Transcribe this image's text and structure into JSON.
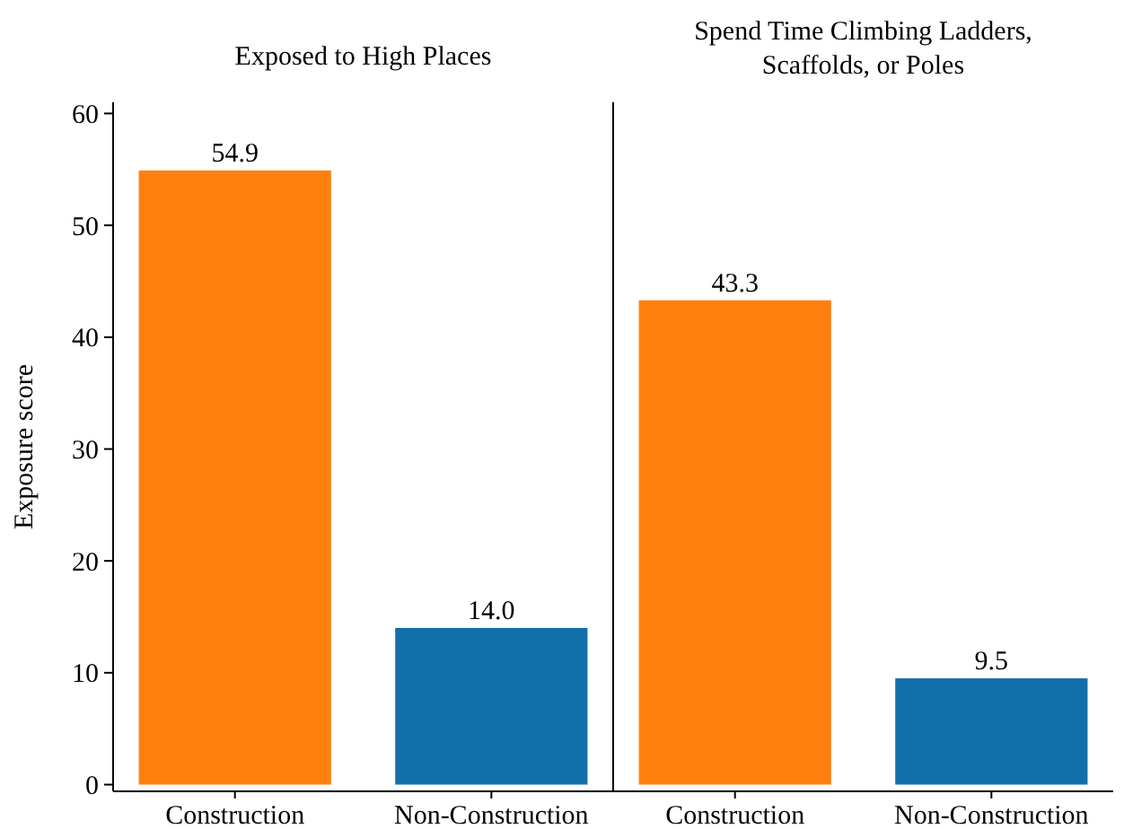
{
  "chart_data": [
    {
      "type": "bar",
      "title": "Exposed to High Places",
      "ylabel": "Exposure score",
      "categories": [
        "Construction",
        "Non-Construction"
      ],
      "values": [
        54.9,
        14.0
      ],
      "value_labels": [
        "54.9",
        "14.0"
      ],
      "colors": [
        "#ff7f0e",
        "#1170aa"
      ],
      "ylim": [
        -0.6,
        61
      ],
      "yticks": [
        0,
        10,
        20,
        30,
        40,
        50,
        60
      ]
    },
    {
      "type": "bar",
      "title": "Spend Time Climbing Ladders, Scaffolds, or Poles",
      "categories": [
        "Construction",
        "Non-Construction"
      ],
      "values": [
        43.3,
        9.5
      ],
      "value_labels": [
        "43.3",
        "9.5"
      ],
      "colors": [
        "#ff7f0e",
        "#1170aa"
      ],
      "ylim": [
        -0.6,
        61
      ],
      "tick_labels": "x"
    }
  ]
}
